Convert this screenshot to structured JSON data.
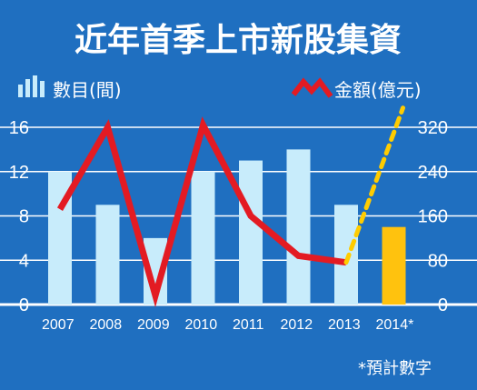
{
  "chart_data": {
    "type": "bar",
    "title": "近年首季上市新股集資",
    "categories": [
      "2007",
      "2008",
      "2009",
      "2010",
      "2011",
      "2012",
      "2013",
      "2014"
    ],
    "x_tick_labels": [
      "2007",
      "2008",
      "2009",
      "2010",
      "2011",
      "2012",
      "2013",
      "2014*"
    ],
    "left_axis": {
      "ticks": [
        "16",
        "12",
        "8",
        "4",
        "0"
      ],
      "ylim": [
        0,
        16
      ]
    },
    "right_axis": {
      "ticks": [
        "320",
        "240",
        "160",
        "80",
        "0"
      ],
      "ylim": [
        0,
        320
      ]
    },
    "grid": true,
    "legend_placement": "top",
    "series": [
      {
        "name": "數目(間)",
        "type": "bar",
        "axis": "left",
        "values": [
          12,
          9,
          6,
          12,
          13,
          14,
          9,
          7
        ],
        "color": "#c8ecfb",
        "projected_color": "#ffc20e",
        "projected_index": 7
      },
      {
        "name": "金額(億元)",
        "type": "line",
        "axis": "right",
        "values": [
          172,
          320,
          16,
          324,
          160,
          88,
          76,
          null
        ],
        "projected_to": 355,
        "color": "#e31b23",
        "projected_color": "#ffcc00"
      }
    ],
    "note": "*預計數字"
  },
  "colors": {
    "background": "#1f6fc0",
    "grid": "#ffffff"
  }
}
